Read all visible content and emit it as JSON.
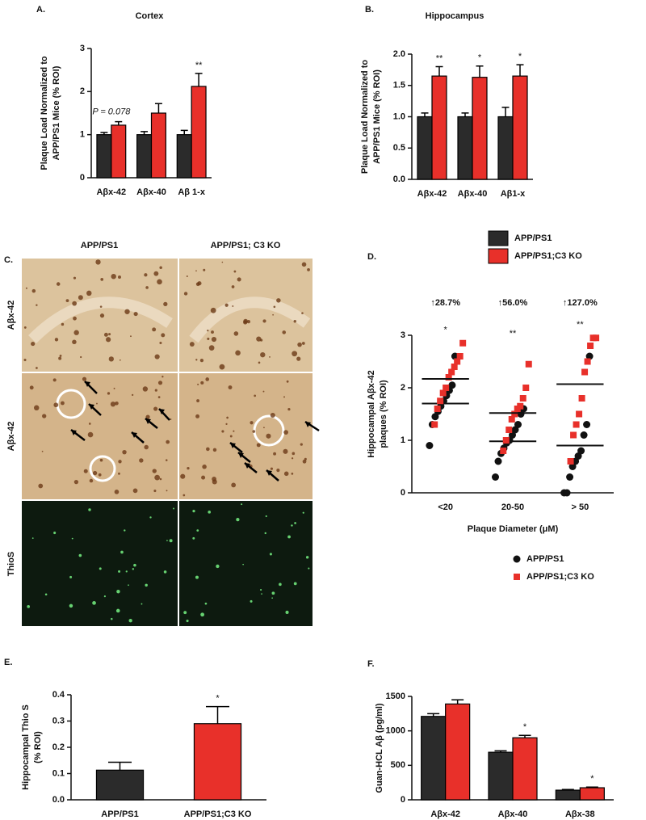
{
  "chart_data": [
    {
      "type": "bar",
      "letter": "A.",
      "title": "Cortex",
      "ylabel": [
        "Plaque Load Normalized to",
        "APP/PS1 Mice (% ROI)"
      ],
      "categories": [
        "Aβx-42",
        "Aβx-40",
        "Aβ 1-x"
      ],
      "series": [
        {
          "color": "#2b2b2b",
          "values": [
            1,
            1,
            1
          ],
          "errors": [
            0.05,
            0.07,
            0.1
          ]
        },
        {
          "color": "#e8302a",
          "values": [
            1.22,
            1.5,
            2.12
          ],
          "errors": [
            0.08,
            0.22,
            0.3
          ]
        }
      ],
      "ylim": [
        0,
        3
      ],
      "yticks": [
        0,
        1,
        2,
        3
      ],
      "annotations": [
        {
          "text": "P = 0.078",
          "category": "Aβx-42"
        },
        {
          "text": "**",
          "category": "Aβ 1-x"
        }
      ]
    },
    {
      "type": "bar",
      "letter": "B.",
      "title": "Hippocampus",
      "ylabel": [
        "Plaque Load Normalized to",
        "APP/PS1 Mice (% ROI)"
      ],
      "categories": [
        "Aβx-42",
        "Aβx-40",
        "Aβ1-x"
      ],
      "series": [
        {
          "name": "APP/PS1",
          "color": "#2b2b2b",
          "values": [
            1,
            1,
            1
          ],
          "errors": [
            0.06,
            0.06,
            0.15
          ]
        },
        {
          "name": "APP/PS1;C3 KO",
          "color": "#e8302a",
          "values": [
            1.65,
            1.63,
            1.65
          ],
          "errors": [
            0.15,
            0.18,
            0.18
          ]
        }
      ],
      "ylim": [
        0,
        2
      ],
      "yticks": [
        {
          "value": 0,
          "label": "0.0"
        },
        {
          "value": 0.5,
          "label": "0.5"
        },
        {
          "value": 1,
          "label": "1.0"
        },
        {
          "value": 1.5,
          "label": "1.5"
        },
        {
          "value": 2,
          "label": "2.0"
        }
      ],
      "legend": "below",
      "annotations": [
        {
          "text": "**",
          "category": "Aβx-42"
        },
        {
          "text": "*",
          "category": "Aβx-40"
        },
        {
          "text": "*",
          "category": "Aβ1-x"
        }
      ]
    },
    {
      "type": "strip",
      "letter": "D.",
      "ylabel": [
        "Hippocampal  Aβx-42",
        "plaques (% ROI)"
      ],
      "xlabel": "Plaque Diameter (μM)",
      "categories": [
        "<20",
        "20-50",
        "> 50"
      ],
      "series": [
        {
          "name": "APP/PS1",
          "color": "#111111",
          "marker": "circle",
          "values": [
            [
              0.9,
              1.3,
              1.45,
              1.55,
              1.65,
              1.75,
              1.85,
              1.95,
              2.05,
              2.6
            ],
            [
              0.3,
              0.6,
              0.75,
              0.85,
              0.95,
              1.0,
              1.1,
              1.2,
              1.3,
              1.5,
              1.6
            ],
            [
              0,
              0,
              0.3,
              0.5,
              0.6,
              0.7,
              0.8,
              1.1,
              1.3,
              2.6
            ]
          ],
          "means": [
            1.7,
            0.98,
            0.9
          ]
        },
        {
          "name": "APP/PS1;C3 KO",
          "color": "#e8302a",
          "marker": "square",
          "values": [
            [
              1.3,
              1.6,
              1.75,
              1.9,
              2.0,
              2.2,
              2.3,
              2.4,
              2.5,
              2.6,
              2.85
            ],
            [
              0.8,
              1.0,
              1.2,
              1.4,
              1.5,
              1.6,
              1.65,
              1.8,
              2.0,
              2.45
            ],
            [
              0.6,
              1.1,
              1.3,
              1.5,
              1.8,
              2.3,
              2.5,
              2.8,
              2.95,
              2.95
            ]
          ],
          "means": [
            2.17,
            1.52,
            2.07
          ]
        }
      ],
      "ylim": [
        0,
        3
      ],
      "yticks": [
        0,
        1,
        2,
        3
      ],
      "legend": "below",
      "changes": [
        "↑28.7%",
        "↑56.0%",
        "↑127.0%"
      ],
      "annotations": [
        {
          "text": "*",
          "category": "<20"
        },
        {
          "text": "**",
          "category": "20-50"
        },
        {
          "text": "**",
          "category": "> 50"
        }
      ]
    },
    {
      "type": "bar",
      "letter": "E.",
      "ylabel": [
        "Hippocampal Thio S",
        "(% ROI)"
      ],
      "categories": [
        "APP/PS1",
        "APP/PS1;C3 KO"
      ],
      "series": [
        {
          "colors": [
            "#2b2b2b",
            "#e8302a"
          ],
          "values": [
            0.113,
            0.29
          ],
          "errors": [
            0.03,
            0.065
          ]
        }
      ],
      "ylim": [
        0,
        0.4
      ],
      "yticks": [
        {
          "value": 0,
          "label": "0.0"
        },
        {
          "value": 0.1,
          "label": "0.1"
        },
        {
          "value": 0.2,
          "label": "0.2"
        },
        {
          "value": 0.3,
          "label": "0.3"
        },
        {
          "value": 0.4,
          "label": "0.4"
        }
      ],
      "annotations": [
        {
          "text": "*",
          "category": "APP/PS1;C3 KO"
        }
      ]
    },
    {
      "type": "bar",
      "letter": "F.",
      "ylabel": [
        "Guan-HCL Aβ (pg/ml)"
      ],
      "categories": [
        "Aβx-42",
        "Aβx-40",
        "Aβx-38"
      ],
      "series": [
        {
          "color": "#2b2b2b",
          "values": [
            1210,
            690,
            140
          ],
          "errors": [
            40,
            20,
            10
          ]
        },
        {
          "color": "#e8302a",
          "values": [
            1390,
            900,
            175
          ],
          "errors": [
            60,
            35,
            10
          ]
        }
      ],
      "ylim": [
        0,
        1500
      ],
      "yticks": [
        0,
        500,
        1000,
        1500
      ],
      "annotations": [
        {
          "text": "*",
          "category": "Aβx-40"
        },
        {
          "text": "*",
          "category": "Aβx-38"
        }
      ]
    }
  ],
  "panel_c": {
    "letter": "C.",
    "columns": [
      "APP/PS1",
      "APP/PS1; C3 KO"
    ],
    "rows": [
      "Aβx-42",
      "Aβx-42",
      "ThioS"
    ]
  }
}
